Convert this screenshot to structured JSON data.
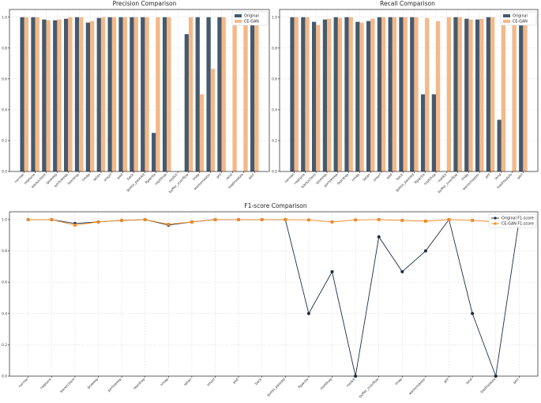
{
  "chart_data": [
    {
      "type": "bar",
      "title": "Precision Comparison",
      "categories": [
        "normal",
        "neptune",
        "warezclient",
        "ipsweep",
        "portsweep",
        "teardrop",
        "nmap",
        "satan",
        "smurf",
        "pod",
        "back",
        "guess_passwd",
        "ftpwrite",
        "multihop",
        "rootkit",
        "buffer_overflow",
        "imap",
        "warezmaster",
        "phf",
        "land",
        "loadmodule",
        "perl"
      ],
      "series": [
        {
          "name": "Original",
          "color": "#465a6e",
          "values": [
            1.0,
            1.0,
            0.985,
            0.98,
            0.99,
            1.0,
            0.965,
            0.995,
            1.0,
            1.0,
            1.0,
            1.0,
            0.25,
            1.0,
            0,
            0.89,
            1.0,
            1.0,
            1.0,
            0,
            0,
            1.0
          ]
        },
        {
          "name": "CE-GAN",
          "color": "#f5b888",
          "values": [
            1.0,
            1.0,
            0.98,
            0.985,
            1.0,
            1.0,
            0.975,
            1.0,
            1.0,
            1.0,
            1.0,
            1.0,
            1.0,
            1.0,
            0,
            1.0,
            0.5,
            0.665,
            1.0,
            1.0,
            1.0,
            1.0
          ]
        }
      ],
      "yticks": [
        0.0,
        0.2,
        0.4,
        0.6,
        0.8,
        1.0
      ],
      "ylim": [
        0,
        1.05
      ],
      "legend": "top-right"
    },
    {
      "type": "bar",
      "title": "Recall Comparison",
      "categories": [
        "normal",
        "neptune",
        "warezclient",
        "ipsweep",
        "portsweep",
        "teardrop",
        "nmap",
        "satan",
        "smurf",
        "pod",
        "back",
        "guess_passwd",
        "ftpwrite",
        "multihop",
        "rootkit",
        "buffer_overflow",
        "imap",
        "warezmaster",
        "phf",
        "land",
        "loadmodule",
        "perl"
      ],
      "series": [
        {
          "name": "Original",
          "color": "#465a6e",
          "values": [
            1.0,
            1.0,
            0.97,
            0.985,
            1.0,
            1.0,
            0.97,
            0.975,
            1.0,
            1.0,
            1.0,
            1.0,
            0.5,
            0.5,
            0,
            1.0,
            0.99,
            0.985,
            1.0,
            0.335,
            0,
            1.0
          ]
        },
        {
          "name": "CE-GAN",
          "color": "#f5b888",
          "values": [
            1.0,
            1.0,
            0.95,
            0.99,
            0.995,
            1.0,
            0.965,
            0.99,
            1.0,
            1.0,
            1.0,
            1.0,
            0.995,
            0.975,
            1.0,
            1.0,
            0.985,
            0.99,
            1.0,
            0.995,
            0.985,
            0.995
          ]
        }
      ],
      "yticks": [
        0.0,
        0.2,
        0.4,
        0.6,
        0.8,
        1.0
      ],
      "ylim": [
        0,
        1.05
      ],
      "legend": "top-right"
    },
    {
      "type": "line",
      "title": "F1-score Comparison",
      "categories": [
        "normal",
        "neptune",
        "warezclient",
        "ipsweep",
        "portsweep",
        "teardrop",
        "nmap",
        "satan",
        "smurf",
        "pod",
        "back",
        "guess_passwd",
        "ftpwrite",
        "multihop",
        "rootkit",
        "buffer_overflow",
        "imap",
        "warezmaster",
        "phf",
        "land",
        "loadmodule",
        "perl"
      ],
      "series": [
        {
          "name": "Original F1-score",
          "color": "#1c2e44",
          "marker": "circle",
          "values": [
            1.0,
            1.0,
            0.975,
            0.985,
            0.995,
            1.0,
            0.965,
            0.985,
            1.0,
            1.0,
            1.0,
            1.0,
            0.4,
            0.667,
            0.0,
            0.89,
            0.667,
            0.8,
            1.0,
            0.4,
            0.0,
            1.0
          ]
        },
        {
          "name": "CE-GAN F1-score",
          "color": "#f08a24",
          "marker": "square",
          "values": [
            1.0,
            1.0,
            0.965,
            0.985,
            0.995,
            1.0,
            0.97,
            0.985,
            1.0,
            1.0,
            1.0,
            1.0,
            0.998,
            0.985,
            0.998,
            1.0,
            0.995,
            0.99,
            1.0,
            0.995,
            0.985,
            0.997
          ]
        }
      ],
      "yticks": [
        0.0,
        0.2,
        0.4,
        0.6,
        0.8,
        1.0
      ],
      "ylim": [
        0,
        1.05
      ],
      "legend": "top-right"
    }
  ]
}
